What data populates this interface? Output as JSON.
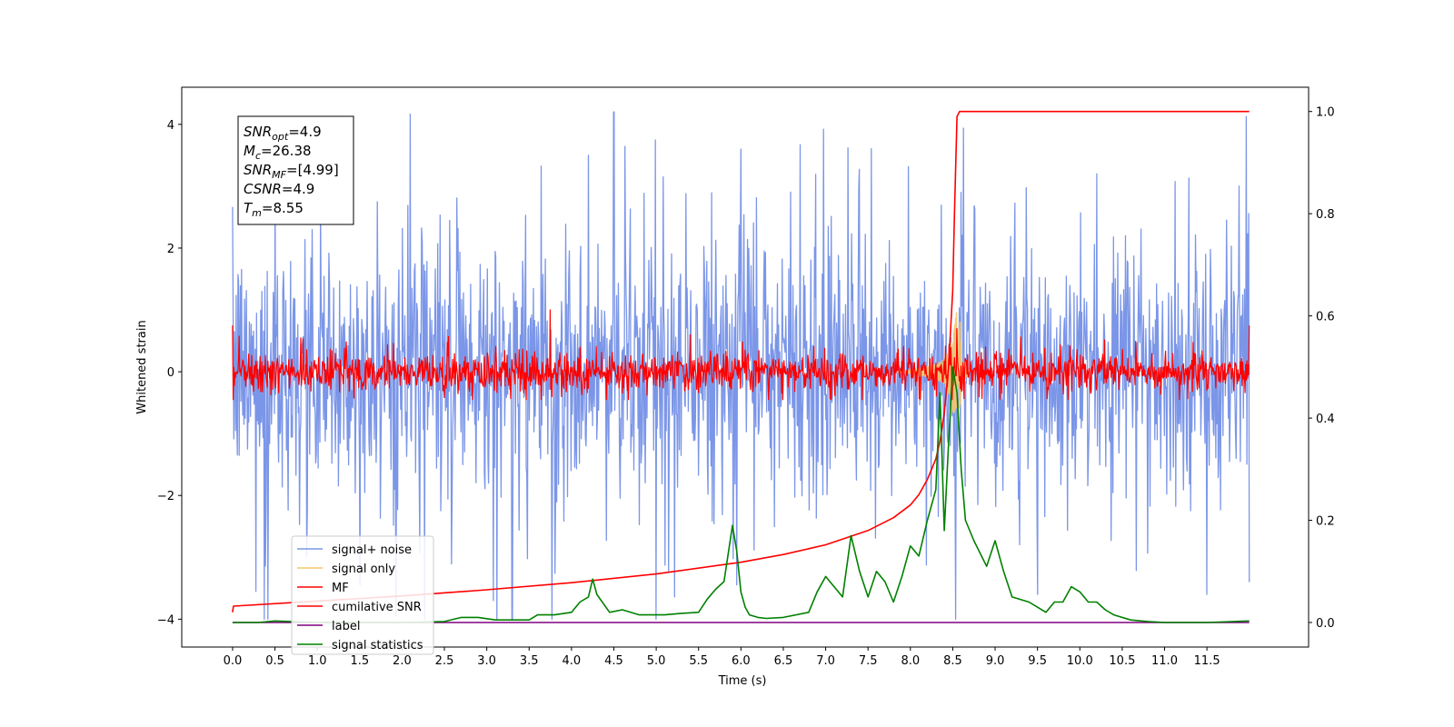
{
  "chart_data": {
    "type": "line",
    "xlabel": "Time (s)",
    "ylabel": "Whitened strain",
    "xlim": [
      -0.6,
      12.7
    ],
    "ylim": [
      -4.45,
      4.6
    ],
    "y2lim": [
      -0.048,
      1.0475
    ],
    "x_ticks": [
      "0.0",
      "0.5",
      "1.0",
      "1.5",
      "2.0",
      "2.5",
      "3.0",
      "3.5",
      "4.0",
      "4.5",
      "5.0",
      "5.5",
      "6.0",
      "6.5",
      "7.0",
      "7.5",
      "8.0",
      "8.5",
      "9.0",
      "9.5",
      "10.0",
      "10.5",
      "11.0",
      "11.5"
    ],
    "y_ticks": [
      "4",
      "2",
      "0",
      "−2",
      "−4"
    ],
    "y2_ticks": [
      "1.0",
      "0.8",
      "0.6",
      "0.4",
      "0.2",
      "0.0"
    ],
    "legend_position": "lower-left",
    "info_box": {
      "lines": [
        {
          "main": "SNR",
          "sub": "opt",
          "value": "=4.9"
        },
        {
          "main": "M",
          "sub": "c",
          "value": "=26.38"
        },
        {
          "main": "SNR",
          "sub": "MF",
          "value": "=[4.99]"
        },
        {
          "main": "CSNR",
          "sub": "",
          "value": "=4.9"
        },
        {
          "main": "T",
          "sub": "m",
          "value": "=8.55"
        }
      ]
    },
    "series": [
      {
        "name": "signal+ noise",
        "color": "#7b96e8",
        "axis": "left",
        "style": "noise",
        "x_range": [
          0.0,
          12.0
        ],
        "baseline": 0.0,
        "amplitude_typical": 1.2,
        "max": 4.2,
        "min": -4.0,
        "peaks": [
          [
            0.5,
            2.9
          ],
          [
            4.5,
            4.2
          ],
          [
            6.0,
            3.6
          ],
          [
            4.2,
            3.5
          ],
          [
            10.2,
            3.2
          ],
          [
            8.6,
            2.9
          ]
        ],
        "troughs": [
          [
            3.3,
            -4.0
          ],
          [
            5.0,
            -4.0
          ],
          [
            9.5,
            -3.6
          ],
          [
            11.5,
            -3.6
          ],
          [
            12.0,
            -3.4
          ]
        ]
      },
      {
        "name": "signal only",
        "color": "#f5c66a",
        "axis": "left",
        "style": "chirp",
        "x": [
          7.8,
          8.0,
          8.2,
          8.3,
          8.4,
          8.45,
          8.5,
          8.55,
          8.58,
          8.62,
          8.7
        ],
        "y": [
          0.0,
          0.03,
          0.08,
          0.12,
          0.2,
          0.35,
          0.65,
          1.0,
          -1.0,
          0.2,
          0.0
        ]
      },
      {
        "name": "MF",
        "color": "#ff0000",
        "axis": "left",
        "style": "noise",
        "x_range": [
          0.0,
          12.0
        ],
        "baseline": 0.0,
        "amplitude_typical": 0.18,
        "max": 1.0,
        "min": -0.45,
        "peaks": [
          [
            3.75,
            1.0
          ],
          [
            0.0,
            0.75
          ],
          [
            12.0,
            0.75
          ],
          [
            5.4,
            0.6
          ],
          [
            8.55,
            0.7
          ]
        ],
        "troughs": []
      },
      {
        "name": "cumilative SNR",
        "color": "#ff0000",
        "axis": "right",
        "style": "line",
        "x": [
          0.0,
          0.01,
          1.0,
          2.0,
          3.0,
          4.0,
          5.0,
          6.0,
          6.5,
          7.0,
          7.5,
          7.8,
          8.0,
          8.1,
          8.2,
          8.3,
          8.35,
          8.4,
          8.45,
          8.5,
          8.52,
          8.55,
          8.58,
          9.0,
          10.0,
          11.0,
          12.0
        ],
        "y": [
          0.02,
          0.032,
          0.042,
          0.052,
          0.064,
          0.078,
          0.095,
          0.118,
          0.133,
          0.152,
          0.18,
          0.205,
          0.23,
          0.25,
          0.28,
          0.32,
          0.355,
          0.41,
          0.5,
          0.65,
          0.8,
          0.99,
          1.0,
          1.0,
          1.0,
          1.0,
          1.0
        ]
      },
      {
        "name": "label",
        "color": "#800080",
        "axis": "right",
        "style": "line",
        "x": [
          0.0,
          12.0
        ],
        "y": [
          0.0,
          0.0
        ]
      },
      {
        "name": "signal statistics",
        "color": "#008000",
        "axis": "right",
        "style": "line",
        "x": [
          0.0,
          0.3,
          0.5,
          1.0,
          1.5,
          2.0,
          2.5,
          2.7,
          2.9,
          3.1,
          3.3,
          3.5,
          3.6,
          3.8,
          4.0,
          4.1,
          4.2,
          4.25,
          4.3,
          4.45,
          4.6,
          4.8,
          4.95,
          5.1,
          5.3,
          5.5,
          5.6,
          5.7,
          5.8,
          5.9,
          5.95,
          6.0,
          6.05,
          6.1,
          6.2,
          6.3,
          6.5,
          6.8,
          6.9,
          7.0,
          7.05,
          7.1,
          7.2,
          7.3,
          7.4,
          7.5,
          7.6,
          7.7,
          7.8,
          7.9,
          8.0,
          8.1,
          8.2,
          8.3,
          8.35,
          8.4,
          8.45,
          8.5,
          8.55,
          8.6,
          8.65,
          8.75,
          8.9,
          9.0,
          9.1,
          9.2,
          9.4,
          9.6,
          9.7,
          9.8,
          9.9,
          10.0,
          10.1,
          10.2,
          10.3,
          10.4,
          10.6,
          10.8,
          11.0,
          11.5,
          12.0
        ],
        "y": [
          0.0,
          0.0,
          0.003,
          0.0,
          0.0,
          0.0,
          0.002,
          0.01,
          0.01,
          0.005,
          0.005,
          0.005,
          0.015,
          0.015,
          0.02,
          0.04,
          0.05,
          0.085,
          0.055,
          0.02,
          0.025,
          0.015,
          0.015,
          0.015,
          0.018,
          0.02,
          0.045,
          0.065,
          0.08,
          0.19,
          0.14,
          0.06,
          0.03,
          0.015,
          0.01,
          0.008,
          0.01,
          0.02,
          0.06,
          0.09,
          0.08,
          0.07,
          0.05,
          0.17,
          0.1,
          0.05,
          0.1,
          0.08,
          0.04,
          0.09,
          0.15,
          0.13,
          0.2,
          0.26,
          0.45,
          0.18,
          0.35,
          0.5,
          0.45,
          0.3,
          0.2,
          0.16,
          0.11,
          0.16,
          0.1,
          0.05,
          0.04,
          0.02,
          0.04,
          0.04,
          0.07,
          0.06,
          0.04,
          0.04,
          0.025,
          0.015,
          0.005,
          0.002,
          0.0,
          0.0,
          0.003
        ]
      }
    ]
  }
}
